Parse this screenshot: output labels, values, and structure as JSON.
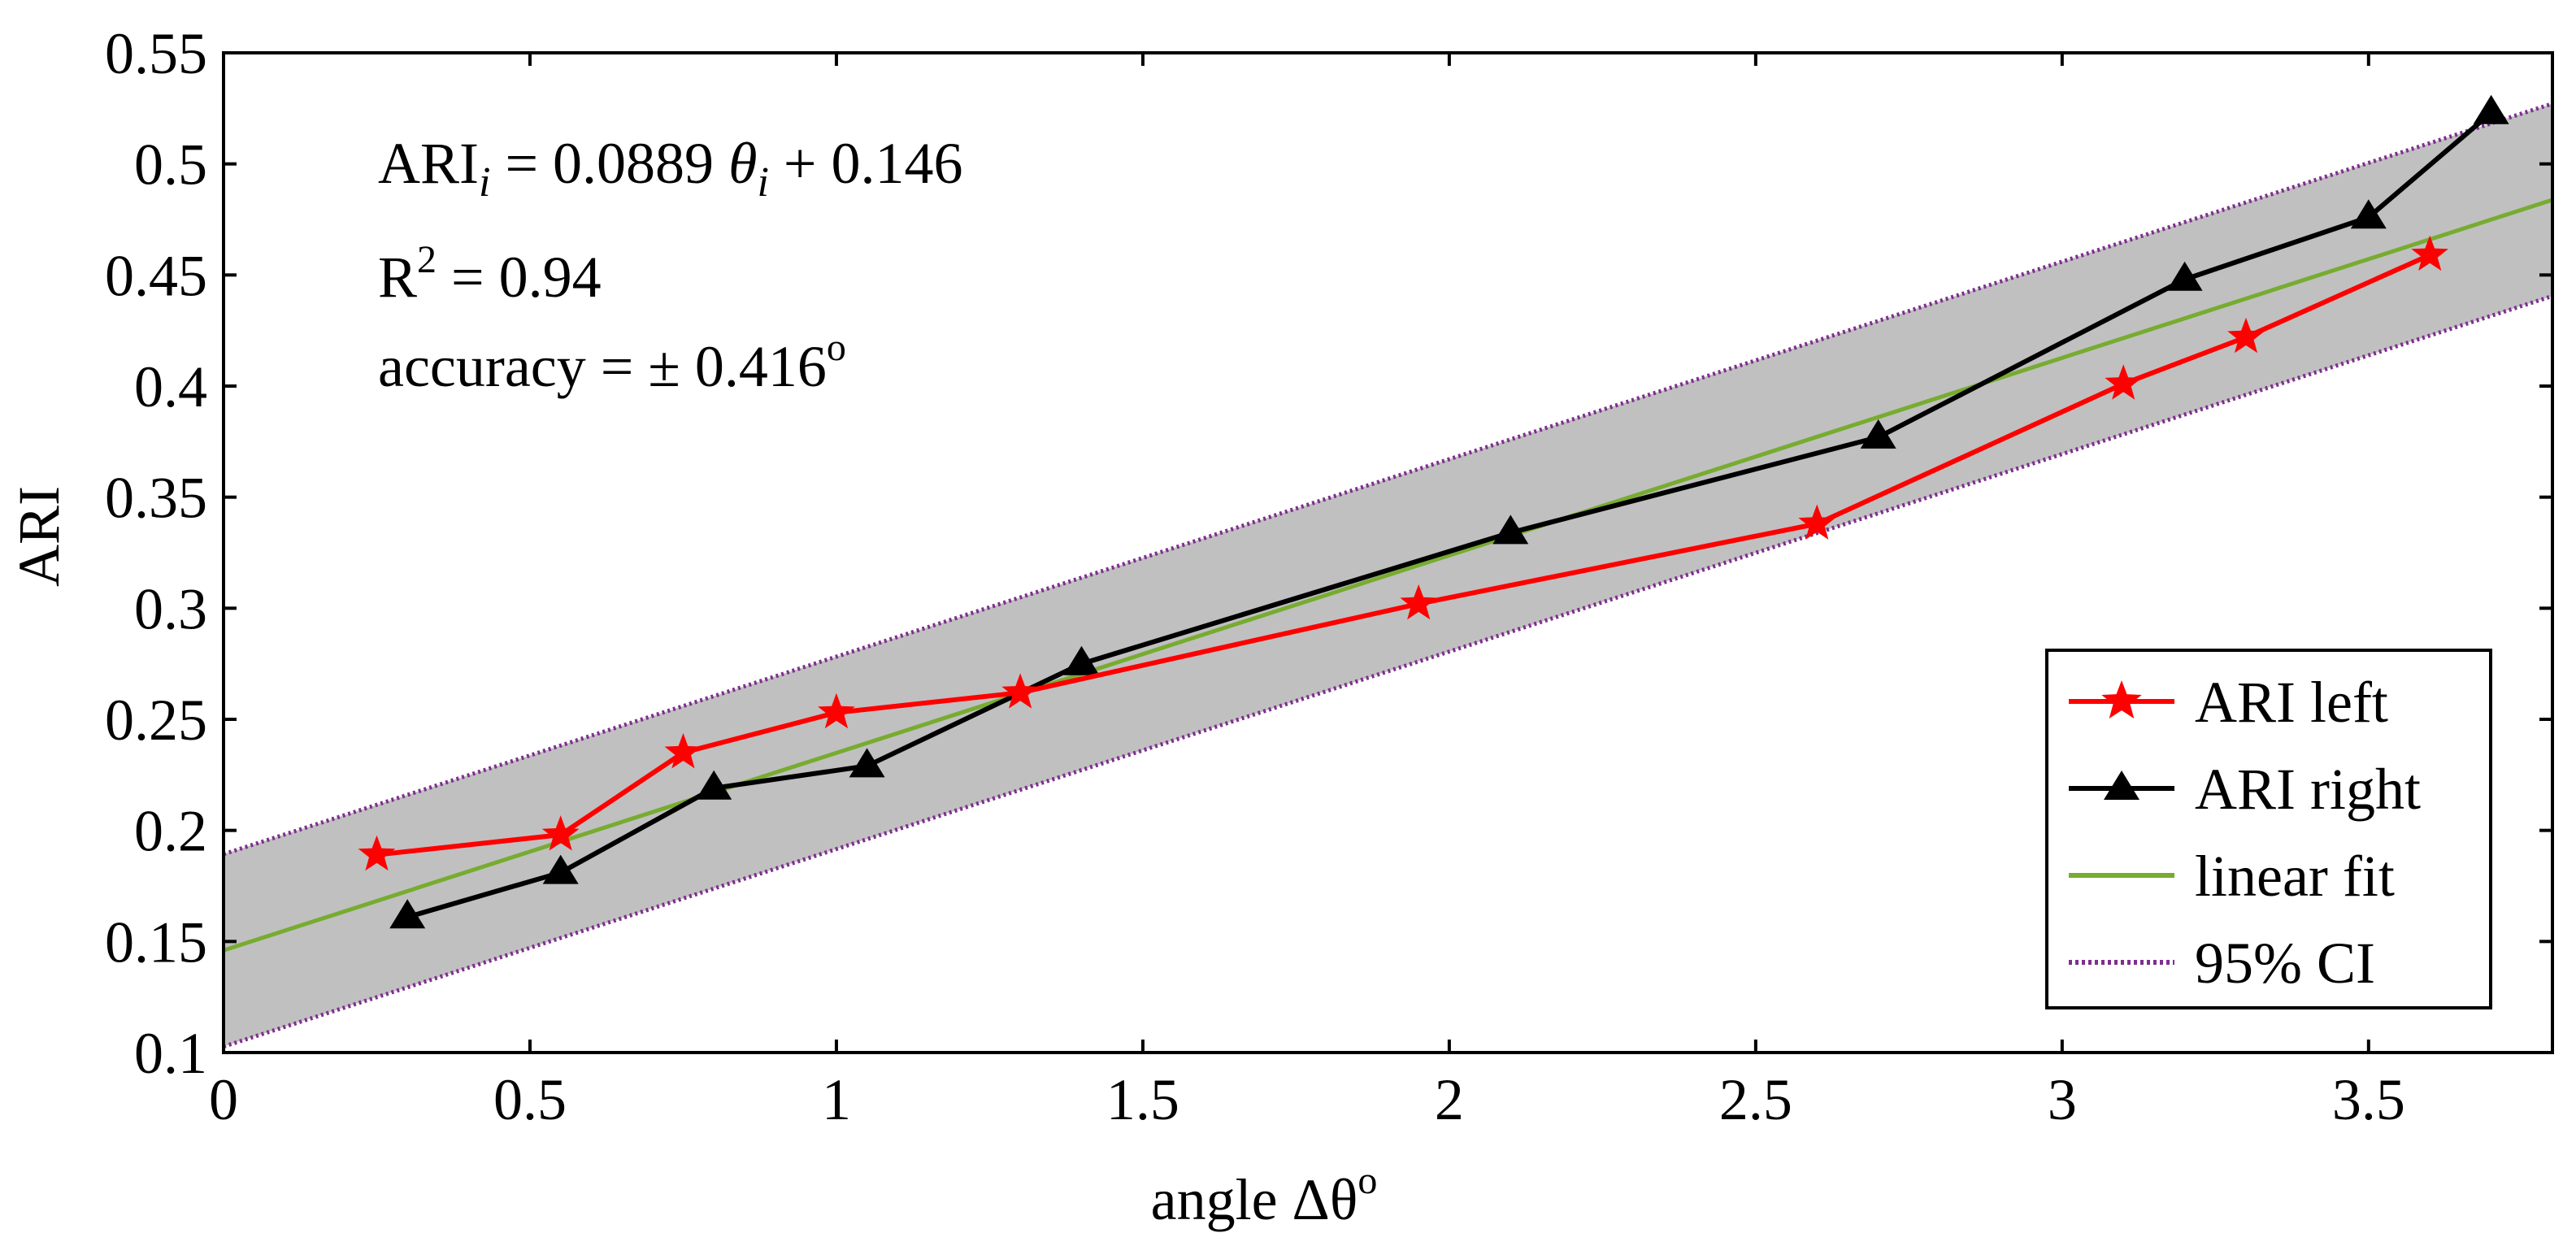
{
  "chart_data": {
    "type": "line",
    "xlabel": "angle Δθ",
    "xlabel_sup": "o",
    "ylabel": "ARI",
    "xlim": [
      0,
      3.8
    ],
    "ylim": [
      0.1,
      0.55
    ],
    "xticks": [
      0,
      0.5,
      1,
      1.5,
      2,
      2.5,
      3,
      3.5
    ],
    "xtick_labels": [
      "0",
      "0.5",
      "1",
      "1.5",
      "2",
      "2.5",
      "3",
      "3.5"
    ],
    "yticks": [
      0.1,
      0.15,
      0.2,
      0.25,
      0.3,
      0.35,
      0.4,
      0.45,
      0.5,
      0.55
    ],
    "ytick_labels": [
      "0.1",
      "0.15",
      "0.2",
      "0.25",
      "0.3",
      "0.35",
      "0.4",
      "0.45",
      "0.5",
      "0.55"
    ],
    "grid": false,
    "legend_position": "bottom-right",
    "series": [
      {
        "name": "ARI left",
        "color": "#ff0000",
        "marker": "star",
        "x": [
          0.25,
          0.55,
          0.75,
          1.0,
          1.3,
          1.95,
          2.6,
          3.1,
          3.3,
          3.6
        ],
        "y": [
          0.189,
          0.198,
          0.235,
          0.253,
          0.262,
          0.302,
          0.338,
          0.401,
          0.422,
          0.459
        ]
      },
      {
        "name": "ARI right",
        "color": "#000000",
        "marker": "triangle",
        "x": [
          0.3,
          0.55,
          0.8,
          1.05,
          1.4,
          2.1,
          2.7,
          3.2,
          3.5,
          3.7
        ],
        "y": [
          0.161,
          0.181,
          0.219,
          0.229,
          0.275,
          0.334,
          0.377,
          0.448,
          0.476,
          0.523
        ]
      },
      {
        "name": "linear fit",
        "color": "#77ac30",
        "marker": "none",
        "slope": 0.0889,
        "intercept": 0.146
      },
      {
        "name": "95% CI",
        "color": "#7e2f8e",
        "marker": "none",
        "style": "dotted",
        "offset": 0.0433,
        "band_fill": "#c0c0c0"
      }
    ],
    "annotations": {
      "equation_main": "ARI",
      "equation_sub": "i",
      "equation_mid": " = 0.0889 ",
      "equation_theta": "θ",
      "equation_sub2": "i",
      "equation_tail": " + 0.146",
      "r2_prefix": "R",
      "r2_sup": "2",
      "r2_value": " = 0.94",
      "accuracy_text": "accuracy = ± 0.416",
      "accuracy_sup": "o"
    }
  }
}
